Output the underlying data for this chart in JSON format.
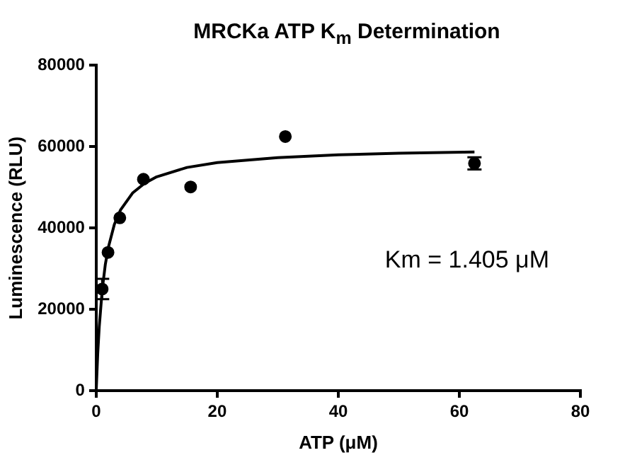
{
  "chart_data": {
    "type": "scatter",
    "title": "MRCKa ATP K$_{m}$ Determination",
    "xlabel": "ATP (μM)",
    "ylabel": "Luminescence (RLU)",
    "annotations": [
      "Km = 1.405 μM"
    ],
    "series": [
      {
        "type": "scatter",
        "marker": "circle",
        "color": "#000000",
        "x": [
          0.98,
          1.95,
          3.9,
          7.8,
          15.6,
          31.25,
          62.5
        ],
        "values": [
          25000,
          34000,
          42500,
          52000,
          50100,
          62500,
          55900
        ],
        "errors": [
          2500,
          null,
          null,
          null,
          null,
          null,
          1500
        ]
      },
      {
        "type": "line",
        "marker": "none",
        "color": "#000000",
        "x": [
          0,
          0.25,
          0.5,
          1,
          1.5,
          2,
          3,
          4,
          6,
          8,
          10,
          15,
          20,
          30,
          40,
          50,
          62.5
        ],
        "values": [
          0,
          9100,
          15700,
          24900,
          31000,
          35200,
          40900,
          44400,
          48600,
          51000,
          52600,
          54900,
          56100,
          57300,
          58000,
          58400,
          58700
        ]
      }
    ],
    "xlim": [
      0,
      80
    ],
    "xticks": [
      0,
      20,
      40,
      60,
      80
    ],
    "ylim": [
      0,
      80000
    ],
    "yticks": [
      0,
      20000,
      40000,
      60000,
      80000
    ],
    "grid": false,
    "legend": false
  }
}
